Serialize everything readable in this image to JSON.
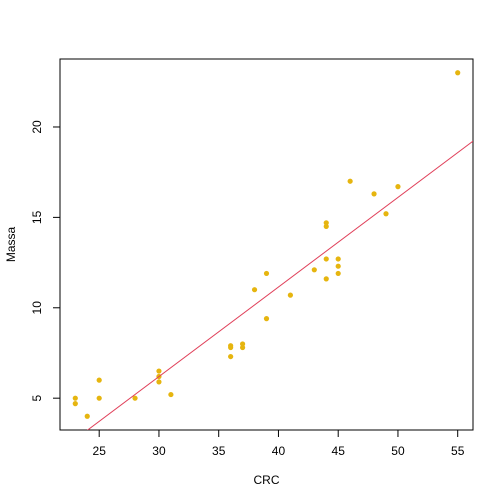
{
  "chart_data": {
    "type": "scatter",
    "x_label": "CRC",
    "y_label": "Massa",
    "color": "#e6b50f",
    "x": [
      23,
      23,
      24,
      25,
      25,
      28,
      30,
      30,
      30,
      31,
      36,
      36,
      36,
      37,
      37,
      38,
      39,
      39,
      41,
      43,
      44,
      44,
      44,
      44,
      45,
      45,
      45,
      46,
      48,
      49,
      50,
      55
    ],
    "y": [
      5.0,
      4.7,
      4.0,
      6.0,
      5.0,
      5.0,
      6.5,
      6.2,
      5.9,
      5.2,
      7.9,
      7.8,
      7.3,
      8.0,
      7.8,
      11.0,
      11.9,
      9.4,
      10.7,
      12.1,
      14.7,
      14.5,
      12.7,
      11.6,
      12.7,
      12.3,
      11.9,
      17.0,
      16.3,
      15.2,
      16.7,
      23.0
    ],
    "fit": {
      "intercept": -8.67,
      "slope": 0.4955,
      "color": "#e0405a"
    },
    "xlim": [
      21.72,
      56.28
    ],
    "ylim": [
      3.24,
      23.76
    ],
    "xticks": [
      25,
      30,
      35,
      40,
      45,
      50,
      55
    ],
    "yticks": [
      5,
      10,
      15,
      20
    ]
  }
}
